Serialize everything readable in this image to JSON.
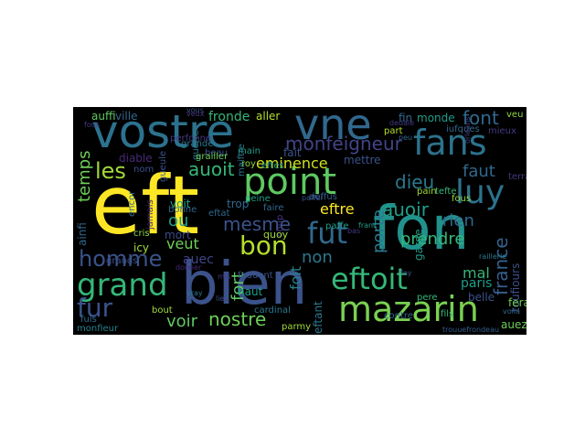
{
  "palette": {
    "yellow": "#fde725",
    "light_green": "#90d743",
    "green": "#35b779",
    "teal": "#21918c",
    "blue": "#31688e",
    "indigo": "#443983",
    "purple": "#440154"
  },
  "words": [
    {
      "text": "eft",
      "color": "#fde725"
    },
    {
      "text": "bien",
      "color": "#3b528b"
    },
    {
      "text": "fon",
      "color": "#21918c"
    },
    {
      "text": "vne",
      "color": "#31688e"
    },
    {
      "text": "vostre",
      "color": "#2c728e"
    },
    {
      "text": "point",
      "color": "#5ec962"
    },
    {
      "text": "mazarin",
      "color": "#7ad151"
    },
    {
      "text": "eftoit",
      "color": "#35b779"
    },
    {
      "text": "grand",
      "color": "#35b779"
    },
    {
      "text": "fans",
      "color": "#2c728e"
    },
    {
      "text": "luy",
      "color": "#2c728e"
    },
    {
      "text": "fut",
      "color": "#31688e"
    },
    {
      "text": "fur",
      "color": "#3b528b"
    },
    {
      "text": "homme",
      "color": "#3b528b"
    },
    {
      "text": "bon",
      "color": "#b5de2b"
    },
    {
      "text": "les",
      "color": "#a0da39"
    },
    {
      "text": "nostre",
      "color": "#6ece58"
    },
    {
      "text": "monfeigneur",
      "color": "#414487"
    },
    {
      "text": "auoit",
      "color": "#35b779"
    },
    {
      "text": "eminence",
      "color": "#cde11d"
    },
    {
      "text": "mesme",
      "color": "#3b528b"
    },
    {
      "text": "ou",
      "color": "#1f9e89"
    },
    {
      "text": "non",
      "color": "#2a788e"
    },
    {
      "text": "voir",
      "color": "#5ec962"
    },
    {
      "text": "eftre",
      "color": "#fde725"
    },
    {
      "text": "auoir",
      "color": "#1f9e89"
    },
    {
      "text": "font",
      "color": "#31688e"
    },
    {
      "text": "faut",
      "color": "#31688e"
    },
    {
      "text": "dieu",
      "color": "#2a788e"
    },
    {
      "text": "temps",
      "color": "#6ece58"
    },
    {
      "text": "veut",
      "color": "#6ece58"
    },
    {
      "text": "auec",
      "color": "#414487"
    },
    {
      "text": "rien",
      "color": "#31688e"
    },
    {
      "text": "prendre",
      "color": "#35b779"
    },
    {
      "text": "france",
      "color": "#355f8d"
    },
    {
      "text": "porte",
      "color": "#2a788e"
    },
    {
      "text": "fort",
      "color": "#5ec962"
    },
    {
      "text": "foit",
      "color": "#26828e"
    },
    {
      "text": "mal",
      "color": "#35b779"
    },
    {
      "text": "paris",
      "color": "#1f9e89"
    },
    {
      "text": "fronde",
      "color": "#35b779"
    },
    {
      "text": "aller",
      "color": "#b5de2b"
    },
    {
      "text": "ville",
      "color": "#31688e"
    },
    {
      "text": "auffi",
      "color": "#5ec962"
    },
    {
      "text": "fait",
      "color": "#3b528b"
    },
    {
      "text": "fin",
      "color": "#31688e"
    },
    {
      "text": "monde",
      "color": "#1f9e89"
    },
    {
      "text": "grande",
      "color": "#2a788e"
    },
    {
      "text": "perfonne",
      "color": "#443983"
    },
    {
      "text": "diable",
      "color": "#482878"
    },
    {
      "text": "eftes",
      "color": "#1f9e89"
    },
    {
      "text": "mettre",
      "color": "#3b528b"
    },
    {
      "text": "part",
      "color": "#b5de2b"
    },
    {
      "text": "trop",
      "color": "#31688e"
    },
    {
      "text": "haut",
      "color": "#1f9e89"
    },
    {
      "text": "mort",
      "color": "#3e4a89"
    },
    {
      "text": "voit",
      "color": "#1f9e89"
    },
    {
      "text": "icy",
      "color": "#a0da39"
    },
    {
      "text": "cris",
      "color": "#90d743"
    },
    {
      "text": "coup",
      "color": "#443983"
    },
    {
      "text": "eftant",
      "color": "#2a788e"
    },
    {
      "text": "toufiours",
      "color": "#3b528b"
    },
    {
      "text": "fera",
      "color": "#6ece58"
    },
    {
      "text": "auez",
      "color": "#6ece58"
    },
    {
      "text": "belle",
      "color": "#3b528b"
    },
    {
      "text": "fils",
      "color": "#35b779"
    },
    {
      "text": "garde",
      "color": "#1f9e89"
    },
    {
      "text": "fous",
      "color": "#90d743"
    },
    {
      "text": "veu",
      "color": "#90d743"
    },
    {
      "text": "mieux",
      "color": "#443983"
    },
    {
      "text": "iufques",
      "color": "#31688e"
    },
    {
      "text": "tefte",
      "color": "#35b779"
    },
    {
      "text": "pain",
      "color": "#a0da39"
    },
    {
      "text": "pere",
      "color": "#35b779"
    },
    {
      "text": "bout",
      "color": "#a0da39"
    },
    {
      "text": "quoy",
      "color": "#a0da39"
    },
    {
      "text": "roy",
      "color": "#90d743"
    },
    {
      "text": "main",
      "color": "#1f9e89"
    },
    {
      "text": "beau",
      "color": "#3b528b"
    },
    {
      "text": "gueule",
      "color": "#3b528b"
    },
    {
      "text": "fuis",
      "color": "#31688e"
    },
    {
      "text": "monfieur",
      "color": "#26828e"
    },
    {
      "text": "grands",
      "color": "#3b528b"
    },
    {
      "text": "cardinal",
      "color": "#2a788e"
    },
    {
      "text": "parmy",
      "color": "#a0da39"
    },
    {
      "text": "deffus",
      "color": "#355f8d"
    },
    {
      "text": "fouuent",
      "color": "#3b528b"
    },
    {
      "text": "eftat",
      "color": "#31688e"
    },
    {
      "text": "contre",
      "color": "#31688e"
    },
    {
      "text": "maiftre",
      "color": "#2a788e"
    },
    {
      "text": "encor",
      "color": "#31688e"
    },
    {
      "text": "jamais",
      "color": "#482878"
    },
    {
      "text": "bonne",
      "color": "#31688e"
    },
    {
      "text": "peine",
      "color": "#1f9e89"
    },
    {
      "text": "faire",
      "color": "#31688e"
    },
    {
      "text": "guerre",
      "color": "#2a788e"
    },
    {
      "text": "nom",
      "color": "#3b528b"
    },
    {
      "text": "ainfi",
      "color": "#31688e"
    },
    {
      "text": "paffe",
      "color": "#1f9e89"
    },
    {
      "text": "terra",
      "color": "#443983"
    },
    {
      "text": "vous",
      "color": "#3b528b"
    },
    {
      "text": "grailler",
      "color": "#6ece58"
    },
    {
      "text": "franc",
      "color": "#1f9e89"
    },
    {
      "text": "trouuefrondeau",
      "color": "#355f8d"
    },
    {
      "text": "orleans",
      "color": "#414487"
    },
    {
      "text": "donner",
      "color": "#482878"
    },
    {
      "text": "vray",
      "color": "#2a788e"
    },
    {
      "text": "foy",
      "color": "#3b528b"
    },
    {
      "text": "peu",
      "color": "#31688e"
    },
    {
      "text": "dedale",
      "color": "#443983"
    },
    {
      "text": "raillerie",
      "color": "#2a788e"
    },
    {
      "text": "voila",
      "color": "#31688e"
    },
    {
      "text": "bas",
      "color": "#443983"
    },
    {
      "text": "veux",
      "color": "#443983"
    },
    {
      "text": "lieu",
      "color": "#3b528b"
    },
    {
      "text": "mis",
      "color": "#443983"
    },
    {
      "text": "fous",
      "color": "#443983"
    },
    {
      "text": "paffer",
      "color": "#3b528b"
    }
  ]
}
